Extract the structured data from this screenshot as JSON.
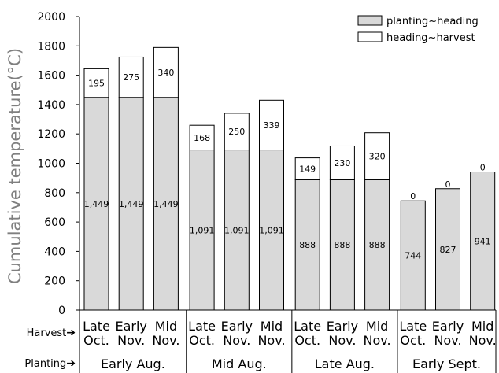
{
  "chart_data": {
    "type": "bar",
    "stacked": true,
    "ylabel": "Cumulative temperature(°C)",
    "ylim": [
      0,
      2000
    ],
    "yticks": [
      0,
      200,
      400,
      600,
      800,
      1000,
      1200,
      1400,
      1600,
      1800,
      2000
    ],
    "ytick_labels": [
      "0",
      "200",
      "400",
      "600",
      "800",
      "1000",
      "1200",
      "1400",
      "1600",
      "1800",
      "2000"
    ],
    "grid": false,
    "legend_position": "top-right",
    "row_labels": {
      "harvest": "Harvest",
      "planting": "Planting"
    },
    "arrow_glyph": "➔",
    "groups": [
      {
        "name": "Early Aug.",
        "bars": [
          {
            "harvest": [
              "Late",
              "Oct."
            ],
            "planting_heading": 1449,
            "heading_harvest": 195,
            "ph_label": "1,449",
            "hh_label": "195"
          },
          {
            "harvest": [
              "Early",
              "Nov."
            ],
            "planting_heading": 1449,
            "heading_harvest": 275,
            "ph_label": "1,449",
            "hh_label": "275"
          },
          {
            "harvest": [
              "Mid",
              "Nov."
            ],
            "planting_heading": 1449,
            "heading_harvest": 340,
            "ph_label": "1,449",
            "hh_label": "340"
          }
        ]
      },
      {
        "name": "Mid Aug.",
        "bars": [
          {
            "harvest": [
              "Late",
              "Oct."
            ],
            "planting_heading": 1091,
            "heading_harvest": 168,
            "ph_label": "1,091",
            "hh_label": "168"
          },
          {
            "harvest": [
              "Early",
              "Nov."
            ],
            "planting_heading": 1091,
            "heading_harvest": 250,
            "ph_label": "1,091",
            "hh_label": "250"
          },
          {
            "harvest": [
              "Mid",
              "Nov."
            ],
            "planting_heading": 1091,
            "heading_harvest": 339,
            "ph_label": "1,091",
            "hh_label": "339"
          }
        ]
      },
      {
        "name": "Late Aug.",
        "bars": [
          {
            "harvest": [
              "Late",
              "Oct."
            ],
            "planting_heading": 888,
            "heading_harvest": 149,
            "ph_label": "888",
            "hh_label": "149"
          },
          {
            "harvest": [
              "Early",
              "Nov."
            ],
            "planting_heading": 888,
            "heading_harvest": 230,
            "ph_label": "888",
            "hh_label": "230"
          },
          {
            "harvest": [
              "Mid",
              "Nov."
            ],
            "planting_heading": 888,
            "heading_harvest": 320,
            "ph_label": "888",
            "hh_label": "320"
          }
        ]
      },
      {
        "name": "Early Sept.",
        "bars": [
          {
            "harvest": [
              "Late",
              "Oct."
            ],
            "planting_heading": 744,
            "heading_harvest": 0,
            "ph_label": "744",
            "hh_label": "0"
          },
          {
            "harvest": [
              "Early",
              "Nov."
            ],
            "planting_heading": 827,
            "heading_harvest": 0,
            "ph_label": "827",
            "hh_label": "0"
          },
          {
            "harvest": [
              "Mid",
              "Nov."
            ],
            "planting_heading": 941,
            "heading_harvest": 0,
            "ph_label": "941",
            "hh_label": "0"
          }
        ]
      }
    ],
    "series": [
      {
        "name": "planting~heading",
        "key": "planting_heading",
        "color": "#d9d9d9"
      },
      {
        "name": "heading~harvest",
        "key": "heading_harvest",
        "color": "#ffffff"
      }
    ],
    "colors": {
      "stroke": "#000000",
      "axis_text": "#000000",
      "ylabel_text": "#7f7f7f"
    }
  }
}
